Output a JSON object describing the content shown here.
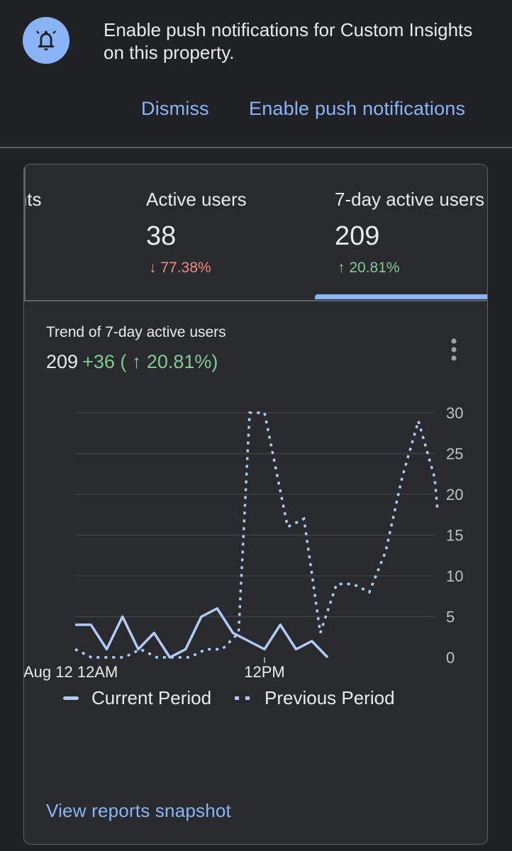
{
  "banner": {
    "message": "Enable push notifications for Custom Insights on this property.",
    "dismiss_label": "Dismiss",
    "enable_label": "Enable push notifications",
    "icon": "bell-icon"
  },
  "metrics_tabs": [
    {
      "label": "Events",
      "value": "",
      "change": "",
      "direction": ""
    },
    {
      "label": "Active users",
      "value": "38",
      "change": "↓ 77.38%",
      "direction": "down"
    },
    {
      "label": "7-day active users",
      "value": "209",
      "change": "↑ 20.81%",
      "direction": "up",
      "selected": true
    }
  ],
  "trend": {
    "title": "Trend of 7-day active users",
    "total": "209",
    "delta": "+36 ( ↑ 20.81%)"
  },
  "chart_data": {
    "type": "line",
    "x_ticks": [
      "Aug 12 12AM",
      "12PM"
    ],
    "y_ticks": [
      0,
      5,
      10,
      15,
      20,
      25,
      30
    ],
    "ylim": [
      0,
      30
    ],
    "grid": true,
    "legend_position": "bottom",
    "series": [
      {
        "name": "Current Period",
        "style": "solid",
        "values": [
          4,
          4,
          1,
          5,
          1,
          3,
          0,
          1,
          5,
          6,
          3,
          2,
          1,
          4,
          1,
          2,
          0
        ]
      },
      {
        "name": "Previous Period",
        "style": "dotted",
        "values": [
          1,
          0,
          0,
          0,
          1,
          0,
          0,
          0,
          1,
          1,
          3,
          30,
          30,
          16,
          17,
          3,
          9,
          9,
          8,
          13,
          22,
          29,
          22,
          18
        ]
      }
    ]
  },
  "legend": {
    "current_label": "Current Period",
    "previous_label": "Previous Period"
  },
  "footer": {
    "link_label": "View reports snapshot"
  },
  "colors": {
    "accent": "#8ab4f8",
    "up": "#81c995",
    "down": "#f28b82",
    "line": "#aecbfa",
    "background": "#202124"
  }
}
